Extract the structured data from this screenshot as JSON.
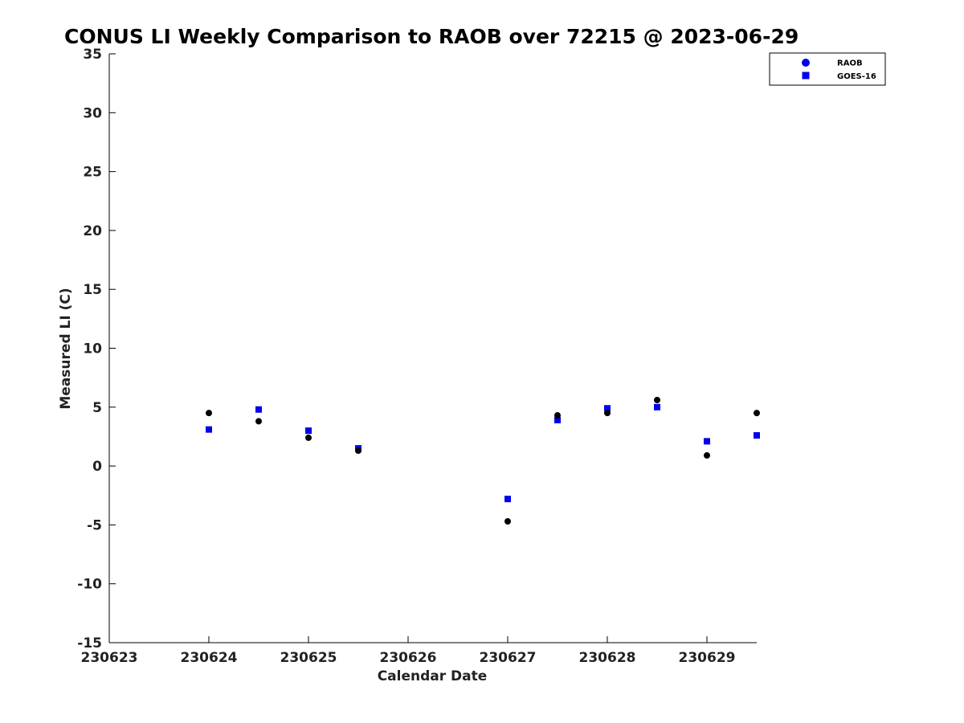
{
  "chart_data": {
    "type": "scatter",
    "title": "CONUS LI Weekly Comparison to RAOB over 72215 @ 2023-06-29",
    "xlabel": "Calendar Date",
    "ylabel": "Measured LI (C)",
    "xlim": [
      "2023-06-23",
      "2023-06-29T12:00"
    ],
    "ylim": [
      -15,
      35
    ],
    "x_ticks": [
      "2023-06-23",
      "2023-06-24",
      "2023-06-25",
      "2023-06-26",
      "2023-06-27",
      "2023-06-28",
      "2023-06-29"
    ],
    "x_tick_labels": [
      "230623",
      "230624",
      "230625",
      "230626",
      "230627",
      "230628",
      "230629"
    ],
    "y_ticks": [
      -15,
      -10,
      -5,
      0,
      5,
      10,
      15,
      20,
      25,
      30,
      35
    ],
    "grid": false,
    "legend_position": "top-right",
    "series": [
      {
        "name": "RAOB",
        "marker": "circle",
        "color": "#000000",
        "legend_color": "#0000ee",
        "x": [
          "2023-06-24T00:00",
          "2023-06-24T12:00",
          "2023-06-25T00:00",
          "2023-06-25T12:00",
          "2023-06-27T00:00",
          "2023-06-27T12:00",
          "2023-06-28T00:00",
          "2023-06-28T12:00",
          "2023-06-29T00:00",
          "2023-06-29T12:00"
        ],
        "y": [
          4.5,
          3.8,
          2.4,
          1.3,
          -4.7,
          4.3,
          4.5,
          5.6,
          0.9,
          4.5
        ]
      },
      {
        "name": "GOES-16",
        "marker": "square",
        "color": "#0000ee",
        "x": [
          "2023-06-24T00:00",
          "2023-06-24T12:00",
          "2023-06-25T00:00",
          "2023-06-25T12:00",
          "2023-06-27T00:00",
          "2023-06-27T12:00",
          "2023-06-28T00:00",
          "2023-06-28T12:00",
          "2023-06-29T00:00",
          "2023-06-29T12:00"
        ],
        "y": [
          3.1,
          4.8,
          3.0,
          1.5,
          -2.8,
          3.9,
          4.9,
          5.0,
          2.1,
          2.6
        ]
      }
    ]
  }
}
